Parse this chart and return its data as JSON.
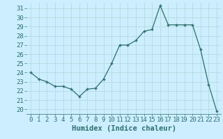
{
  "x": [
    0,
    1,
    2,
    3,
    4,
    5,
    6,
    7,
    8,
    9,
    10,
    11,
    12,
    13,
    14,
    15,
    16,
    17,
    18,
    19,
    20,
    21,
    22,
    23
  ],
  "y": [
    24.0,
    23.3,
    23.0,
    22.5,
    22.5,
    22.2,
    21.4,
    22.2,
    22.3,
    23.3,
    25.0,
    27.0,
    27.0,
    27.5,
    28.5,
    28.7,
    31.3,
    29.2,
    29.2,
    29.2,
    29.2,
    26.5,
    22.7,
    19.8
  ],
  "xlabel": "Humidex (Indice chaleur)",
  "ylim_min": 19.5,
  "ylim_max": 31.6,
  "yticks": [
    20,
    21,
    22,
    23,
    24,
    25,
    26,
    27,
    28,
    29,
    30,
    31
  ],
  "xticks": [
    0,
    1,
    2,
    3,
    4,
    5,
    6,
    7,
    8,
    9,
    10,
    11,
    12,
    13,
    14,
    15,
    16,
    17,
    18,
    19,
    20,
    21,
    22,
    23
  ],
  "line_color": "#2e6e6e",
  "marker_color": "#2e6e6e",
  "bg_color": "#cceeff",
  "grid_color": "#b0d8d8",
  "tick_label_color": "#2e6e6e",
  "xlabel_fontsize": 7.5,
  "tick_fontsize": 6.5
}
